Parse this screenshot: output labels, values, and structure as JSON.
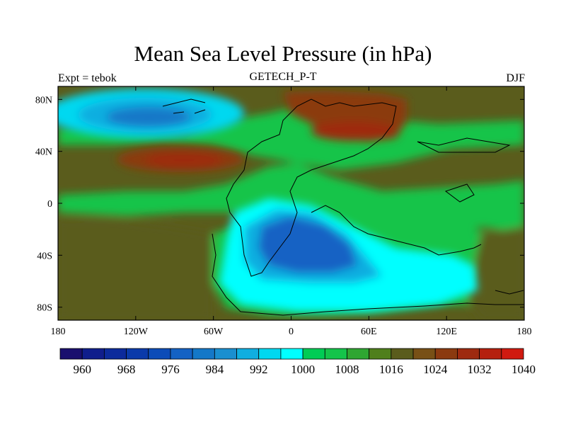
{
  "title": "Mean Sea Level Pressure (in hPa)",
  "subtitle": "GETECH_P-T",
  "left_label": "Expt = tebok",
  "right_label": "DJF",
  "map": {
    "projection": "cylindrical-equidistant",
    "lon_range": [
      -180,
      180
    ],
    "lat_range": [
      -90,
      90
    ],
    "x_ticks": [
      {
        "value": -180,
        "label": "180"
      },
      {
        "value": -120,
        "label": "120W"
      },
      {
        "value": -60,
        "label": "60W"
      },
      {
        "value": 0,
        "label": "0"
      },
      {
        "value": 60,
        "label": "60E"
      },
      {
        "value": 120,
        "label": "120E"
      },
      {
        "value": 180,
        "label": "180"
      }
    ],
    "y_ticks": [
      {
        "value": 80,
        "label": "80N"
      },
      {
        "value": 40,
        "label": "40N"
      },
      {
        "value": 0,
        "label": "0"
      },
      {
        "value": -40,
        "label": "40S"
      },
      {
        "value": -80,
        "label": "80S"
      }
    ],
    "background_color": "#5a5c1c",
    "pressure_features": [
      {
        "name": "subpolar-low-north",
        "lon": [
          -175,
          -65
        ],
        "lat": [
          58,
          90
        ],
        "level": 1004,
        "color": "#00ffff"
      },
      {
        "name": "subpolar-low-north",
        "lon": [
          -160,
          -80
        ],
        "lat": [
          62,
          86
        ],
        "level": 992,
        "color": "#00b0e0"
      },
      {
        "name": "subpolar-low-north-core",
        "lon": [
          -140,
          -100
        ],
        "lat": [
          64,
          80
        ],
        "level": 984,
        "color": "#1478c8"
      },
      {
        "name": "subtropical-high-north",
        "lon": [
          -140,
          -40
        ],
        "lat": [
          24,
          48
        ],
        "level": 1024,
        "color": "#8b3a10"
      },
      {
        "name": "asian-high",
        "lon": [
          0,
          90
        ],
        "lat": [
          50,
          90
        ],
        "level": 1026,
        "color": "#8b3a10"
      },
      {
        "name": "southern-low",
        "lon": [
          -40,
          140
        ],
        "lat": [
          -90,
          -20
        ],
        "level": 1004,
        "color": "#00ffff"
      },
      {
        "name": "southern-low-core",
        "lon": [
          -20,
          60
        ],
        "lat": [
          -60,
          -10
        ],
        "level": 988,
        "color": "#1478c8"
      }
    ]
  },
  "colorbar": {
    "levels": [
      960,
      964,
      968,
      972,
      976,
      980,
      984,
      988,
      992,
      996,
      1000,
      1004,
      1008,
      1012,
      1016,
      1020,
      1024,
      1028,
      1032,
      1036,
      1040
    ],
    "labels": [
      "960",
      "968",
      "976",
      "984",
      "992",
      "1000",
      "1008",
      "1016",
      "1024",
      "1032",
      "1040"
    ],
    "colors": [
      "#1a0f6e",
      "#101e8c",
      "#0c2b9c",
      "#0a3aaa",
      "#0c4cb8",
      "#1462c4",
      "#1478c8",
      "#1a8fd0",
      "#10aee0",
      "#00d8f0",
      "#00ffff",
      "#00cc55",
      "#14c44a",
      "#2fa632",
      "#4f7f1c",
      "#5a5c1c",
      "#785016",
      "#8b3a10",
      "#9e2a10",
      "#b5200e",
      "#d01a10"
    ]
  },
  "chart_data": {
    "type": "heatmap",
    "title": "Mean Sea Level Pressure (in hPa)",
    "subtitle": "GETECH_P-T",
    "xlabel": "",
    "ylabel": "",
    "x_ticks": [
      "180",
      "120W",
      "60W",
      "0",
      "60E",
      "120E",
      "180"
    ],
    "y_ticks": [
      "80N",
      "40N",
      "0",
      "40S",
      "80S"
    ],
    "units": "hPa",
    "color_scale_range": [
      960,
      1040
    ],
    "legend": "bottom"
  }
}
